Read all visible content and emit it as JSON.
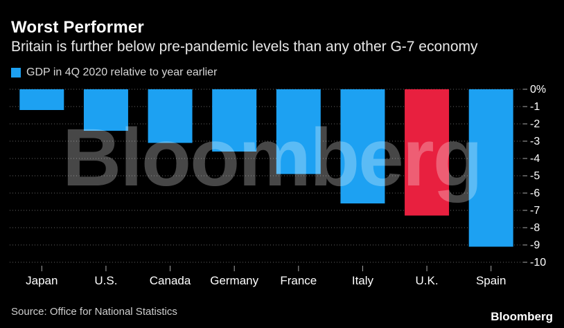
{
  "header": {
    "title": "Worst Performer",
    "subtitle": "Britain is further below pre-pandemic levels than any other G-7 economy"
  },
  "legend": {
    "label": "GDP in 4Q 2020 relative to year earlier"
  },
  "footer": {
    "source": "Source: Office for National Statistics",
    "brand": "Bloomberg"
  },
  "watermark": "Bloomberg",
  "colors": {
    "default_bar": "#1da1f2",
    "highlight_bar": "#e8203f",
    "grid": "#666666"
  },
  "chart_data": {
    "type": "bar",
    "categories": [
      "Japan",
      "U.S.",
      "Canada",
      "Germany",
      "France",
      "Italy",
      "U.K.",
      "Spain"
    ],
    "series": [
      {
        "values": [
          -1.2,
          -2.4,
          -3.1,
          -3.6,
          -4.9,
          -6.6,
          -7.3,
          -9.1
        ]
      }
    ],
    "highlight_index": 6,
    "yticks": [
      "0%",
      "-1",
      "-2",
      "-3",
      "-4",
      "-5",
      "-6",
      "-7",
      "-8",
      "-9",
      "-10"
    ],
    "ylim": [
      -10,
      0
    ],
    "y_axis_side": "right",
    "grid": true
  }
}
